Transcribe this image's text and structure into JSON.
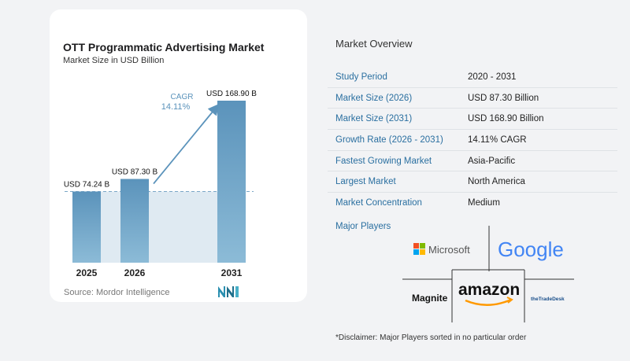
{
  "chart": {
    "title": "OTT Programmatic Advertising Market",
    "subtitle": "Market Size in USD Billion",
    "source": "Source:  Mordor Intelligence"
  },
  "chart_data": {
    "type": "bar",
    "title": "OTT Programmatic Advertising Market",
    "subtitle": "Market Size in USD Billion",
    "categories": [
      "2025",
      "2026",
      "2031"
    ],
    "values": [
      74.24,
      87.3,
      168.9
    ],
    "data_labels": [
      "USD 74.24 B",
      "USD 87.30 B",
      "USD 168.90 B"
    ],
    "cagr": {
      "label": "CAGR",
      "value": "14.11%"
    },
    "ylim": [
      0,
      168.9
    ],
    "grid": false,
    "colors": {
      "bar": "#5b93bb",
      "bar_light": "#8fb8d6",
      "shade": "#dfeaf2",
      "arrow": "#5b93bb",
      "cagr": "#5b93bb"
    }
  },
  "overview": {
    "title": "Market Overview",
    "rows": [
      {
        "label": "Study Period",
        "value": "2020 - 2031"
      },
      {
        "label": "Market Size (2026)",
        "value": "USD 87.30 Billion"
      },
      {
        "label": "Market Size (2031)",
        "value": "USD 168.90 Billion"
      },
      {
        "label": "Growth Rate (2026 - 2031)",
        "value": "14.11% CAGR"
      },
      {
        "label": "Fastest Growing Market",
        "value": "Asia-Pacific"
      },
      {
        "label": "Largest Market",
        "value": "North America"
      },
      {
        "label": "Market Concentration",
        "value": "Medium"
      }
    ],
    "players_title": "Major Players",
    "players": [
      "Microsoft",
      "Google",
      "Magnite",
      "amazon",
      "theTradeDesk"
    ],
    "disclaimer": "*Disclaimer: Major Players sorted in no particular order"
  }
}
